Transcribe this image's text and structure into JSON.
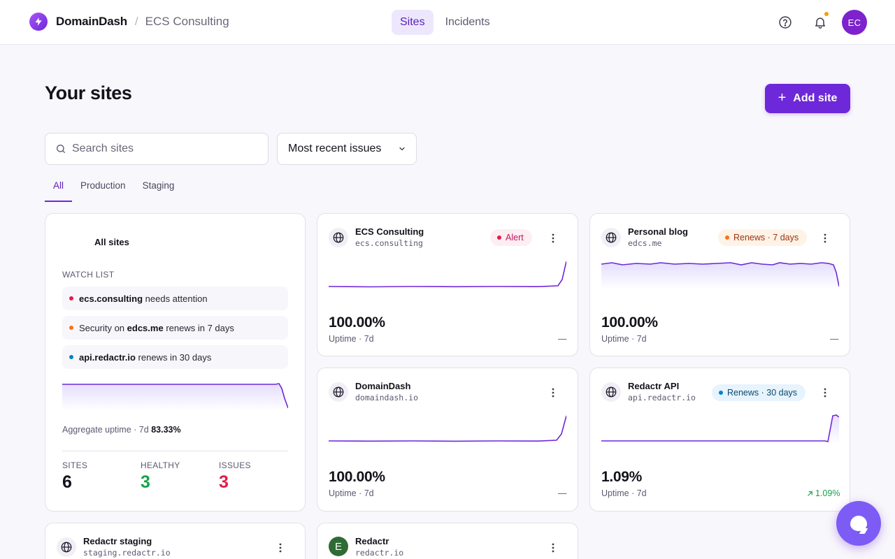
{
  "header": {
    "brand": "DomainDash",
    "separator": "/",
    "org": "ECS Consulting",
    "nav": [
      {
        "label": "Sites"
      },
      {
        "label": "Incidents"
      }
    ],
    "avatar_initials": "EC"
  },
  "page": {
    "title": "Your sites",
    "add_site_label": "Add site",
    "search_placeholder": "Search sites",
    "sort_label": "Most recent issues",
    "tabs": [
      {
        "label": "All"
      },
      {
        "label": "Production"
      },
      {
        "label": "Staging"
      }
    ]
  },
  "summary": {
    "title": "All sites",
    "watch_list_label": "WATCH LIST",
    "watch_items": [
      {
        "pre": "",
        "bold": "ecs.consulting",
        "post": " needs attention",
        "color": "#e11d48"
      },
      {
        "pre": "Security on ",
        "bold": "edcs.me",
        "post": " renews in 7 days",
        "color": "#f97316"
      },
      {
        "pre": "",
        "bold": "api.redactr.io",
        "post": " renews in 30 days",
        "color": "#0284c7"
      }
    ],
    "aggregate_label": "Aggregate uptime · 7d",
    "aggregate_value": "83.33%",
    "stats": [
      {
        "label": "SITES",
        "value": "6",
        "color": "#14121a"
      },
      {
        "label": "HEALTHY",
        "value": "3",
        "color": "#16a34a"
      },
      {
        "label": "ISSUES",
        "value": "3",
        "color": "#e11d48"
      }
    ]
  },
  "sites": [
    {
      "name": "ECS Consulting",
      "domain": "ecs.consulting",
      "badge": "Alert",
      "badge_type": "alert",
      "uptime": "100.00%",
      "uptime_label": "Uptime · 7d",
      "trend": "—"
    },
    {
      "name": "Personal blog",
      "domain": "edcs.me",
      "badge": "Renews · 7 days",
      "badge_type": "warn",
      "uptime": "100.00%",
      "uptime_label": "Uptime · 7d",
      "trend": "—"
    },
    {
      "name": "DomainDash",
      "domain": "domaindash.io",
      "badge": "",
      "badge_type": "",
      "uptime": "100.00%",
      "uptime_label": "Uptime · 7d",
      "trend": "—"
    },
    {
      "name": "Redactr API",
      "domain": "api.redactr.io",
      "badge": "Renews · 30 days",
      "badge_type": "info",
      "uptime": "1.09%",
      "uptime_label": "Uptime · 7d",
      "trend": "1.09%"
    },
    {
      "name": "Redactr staging",
      "domain": "staging.redactr.io"
    },
    {
      "name": "Redactr",
      "domain": "redactr.io",
      "avatar_letter": "E"
    }
  ],
  "colors": {
    "accent": "#6d28d9",
    "alert": "#e11d48",
    "warn": "#f97316",
    "info": "#0284c7",
    "healthy": "#16a34a"
  },
  "icons": {
    "brand": "bolt-icon",
    "help": "help-circle-icon",
    "notifications": "bell-icon",
    "search": "search-icon",
    "sort": "chevron-down-icon",
    "site": "globe-icon",
    "menu": "kebab-icon",
    "chat": "chat-bubble-icon"
  }
}
